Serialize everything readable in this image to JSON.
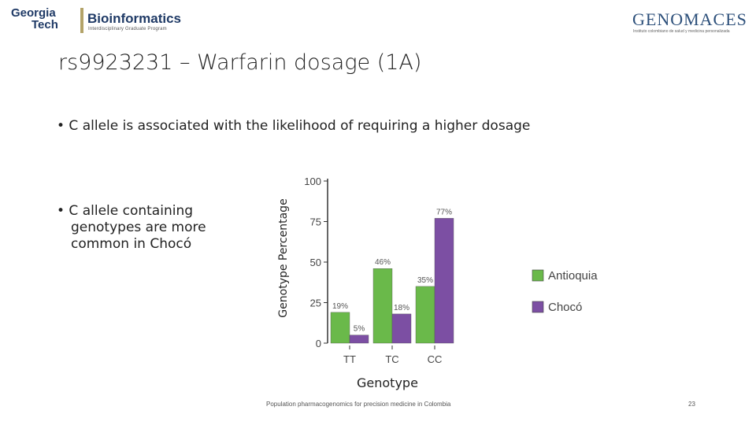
{
  "logos": {
    "left": {
      "line1": "Georgia",
      "line2": "Tech",
      "name": "Bioinformatics",
      "subtitle": "Interdisciplinary Graduate Program"
    },
    "right": {
      "name": "GENOMACES",
      "subtitle": "Instituto colombiano de salud y medicina personalizada"
    }
  },
  "slide": {
    "title": "rs9923231 – Warfarin dosage (1A)",
    "bullets": [
      "• C allele is associated with the likelihood of requiring a higher dosage",
      "• C allele containing genotypes are more common in Chocó"
    ],
    "footer": "Population pharmacogenomics for precision medicine in Colombia",
    "page_number": "23"
  },
  "chart_data": {
    "type": "bar",
    "title": "",
    "xlabel": "Genotype",
    "ylabel": "Genotype Percentage",
    "categories": [
      "TT",
      "TC",
      "CC"
    ],
    "series": [
      {
        "name": "Antioquia",
        "color": "#6ab94a",
        "values": [
          19,
          46,
          35
        ],
        "labels": [
          "19%",
          "46%",
          "35%"
        ]
      },
      {
        "name": "Chocó",
        "color": "#7c4fa3",
        "values": [
          5,
          18,
          77
        ],
        "labels": [
          "5%",
          "18%",
          "77%"
        ]
      }
    ],
    "ylim": [
      0,
      100
    ],
    "yticks": [
      "0",
      "25",
      "50",
      "75",
      "100"
    ],
    "grid": false,
    "legend_position": "right"
  }
}
